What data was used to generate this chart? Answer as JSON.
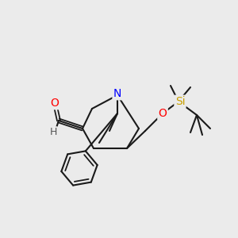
{
  "bg_color": "#ebebeb",
  "bond_color": "#1a1a1a",
  "bond_lw": 1.5,
  "atom_colors": {
    "O": "#ff0000",
    "N": "#0000ff",
    "Si": "#c8a000",
    "C": "#1a1a1a",
    "H": "#555555"
  },
  "font_size": 9,
  "font_family": "DejaVu Sans"
}
